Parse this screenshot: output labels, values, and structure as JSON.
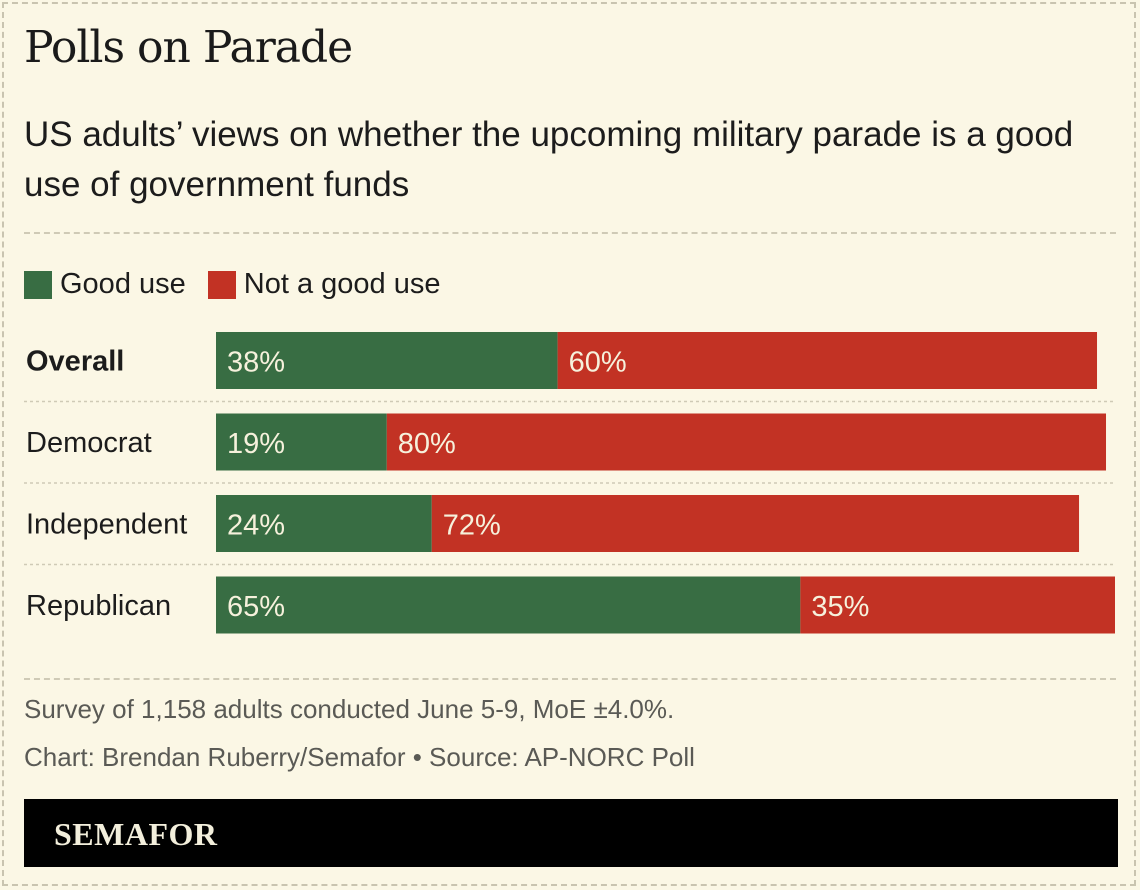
{
  "title": "Polls on Parade",
  "subtitle": "US adults’ views on whether the upcoming military parade is a good use of government funds",
  "legend": [
    {
      "label": "Good use",
      "color": "#386d43"
    },
    {
      "label": "Not a good use",
      "color": "#c23224"
    }
  ],
  "chart_data": {
    "type": "bar",
    "orientation": "horizontal",
    "stacked": true,
    "categories": [
      "Overall",
      "Democrat",
      "Independent",
      "Republican"
    ],
    "bold_categories": [
      "Overall"
    ],
    "series": [
      {
        "name": "Good use",
        "color": "#386d43",
        "values": [
          38,
          19,
          24,
          65
        ],
        "labels": [
          "38%",
          "19%",
          "24%",
          "65%"
        ]
      },
      {
        "name": "Not a good use",
        "color": "#c23224",
        "values": [
          60,
          80,
          72,
          35
        ],
        "labels": [
          "60%",
          "80%",
          "72%",
          "35%"
        ]
      }
    ],
    "xlim": [
      0,
      100
    ],
    "unit": "%"
  },
  "notes": {
    "survey": "Survey of 1,158 adults conducted June 5-9, MoE ±4.0%.",
    "credit": "Chart: Brendan Ruberry/Semafor • Source: AP-NORC Poll"
  },
  "footer": {
    "logo": "SEMAFOR"
  }
}
